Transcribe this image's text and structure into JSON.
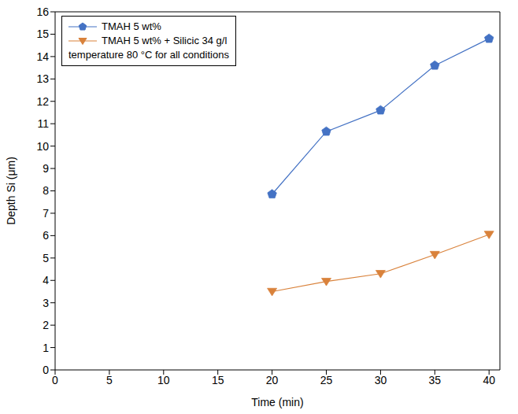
{
  "chart_data": {
    "type": "line",
    "x": [
      20,
      25,
      30,
      35,
      40
    ],
    "series": [
      {
        "name": "TMAH 5 wt%",
        "color": "#4472c4",
        "marker": "pentagon",
        "values": [
          7.85,
          10.65,
          11.6,
          13.6,
          14.8
        ]
      },
      {
        "name": "TMAH 5 wt% + Silicic 34 g/l",
        "color": "#d9823b",
        "marker": "triangle-down",
        "values": [
          3.5,
          3.95,
          4.3,
          5.15,
          6.05
        ]
      }
    ],
    "x_label": "Time (min)",
    "y_label": "Depth Si (μm)",
    "annotation": "temperature 80 °C for all conditions",
    "xlim": [
      0,
      41
    ],
    "xticks": [
      0,
      5,
      10,
      15,
      20,
      25,
      30,
      35,
      40
    ],
    "ylim": [
      0,
      16
    ],
    "yticks": [
      0,
      1,
      2,
      3,
      4,
      5,
      6,
      7,
      8,
      9,
      10,
      11,
      12,
      13,
      14,
      15,
      16
    ],
    "legend": "upper left",
    "grid": false
  }
}
